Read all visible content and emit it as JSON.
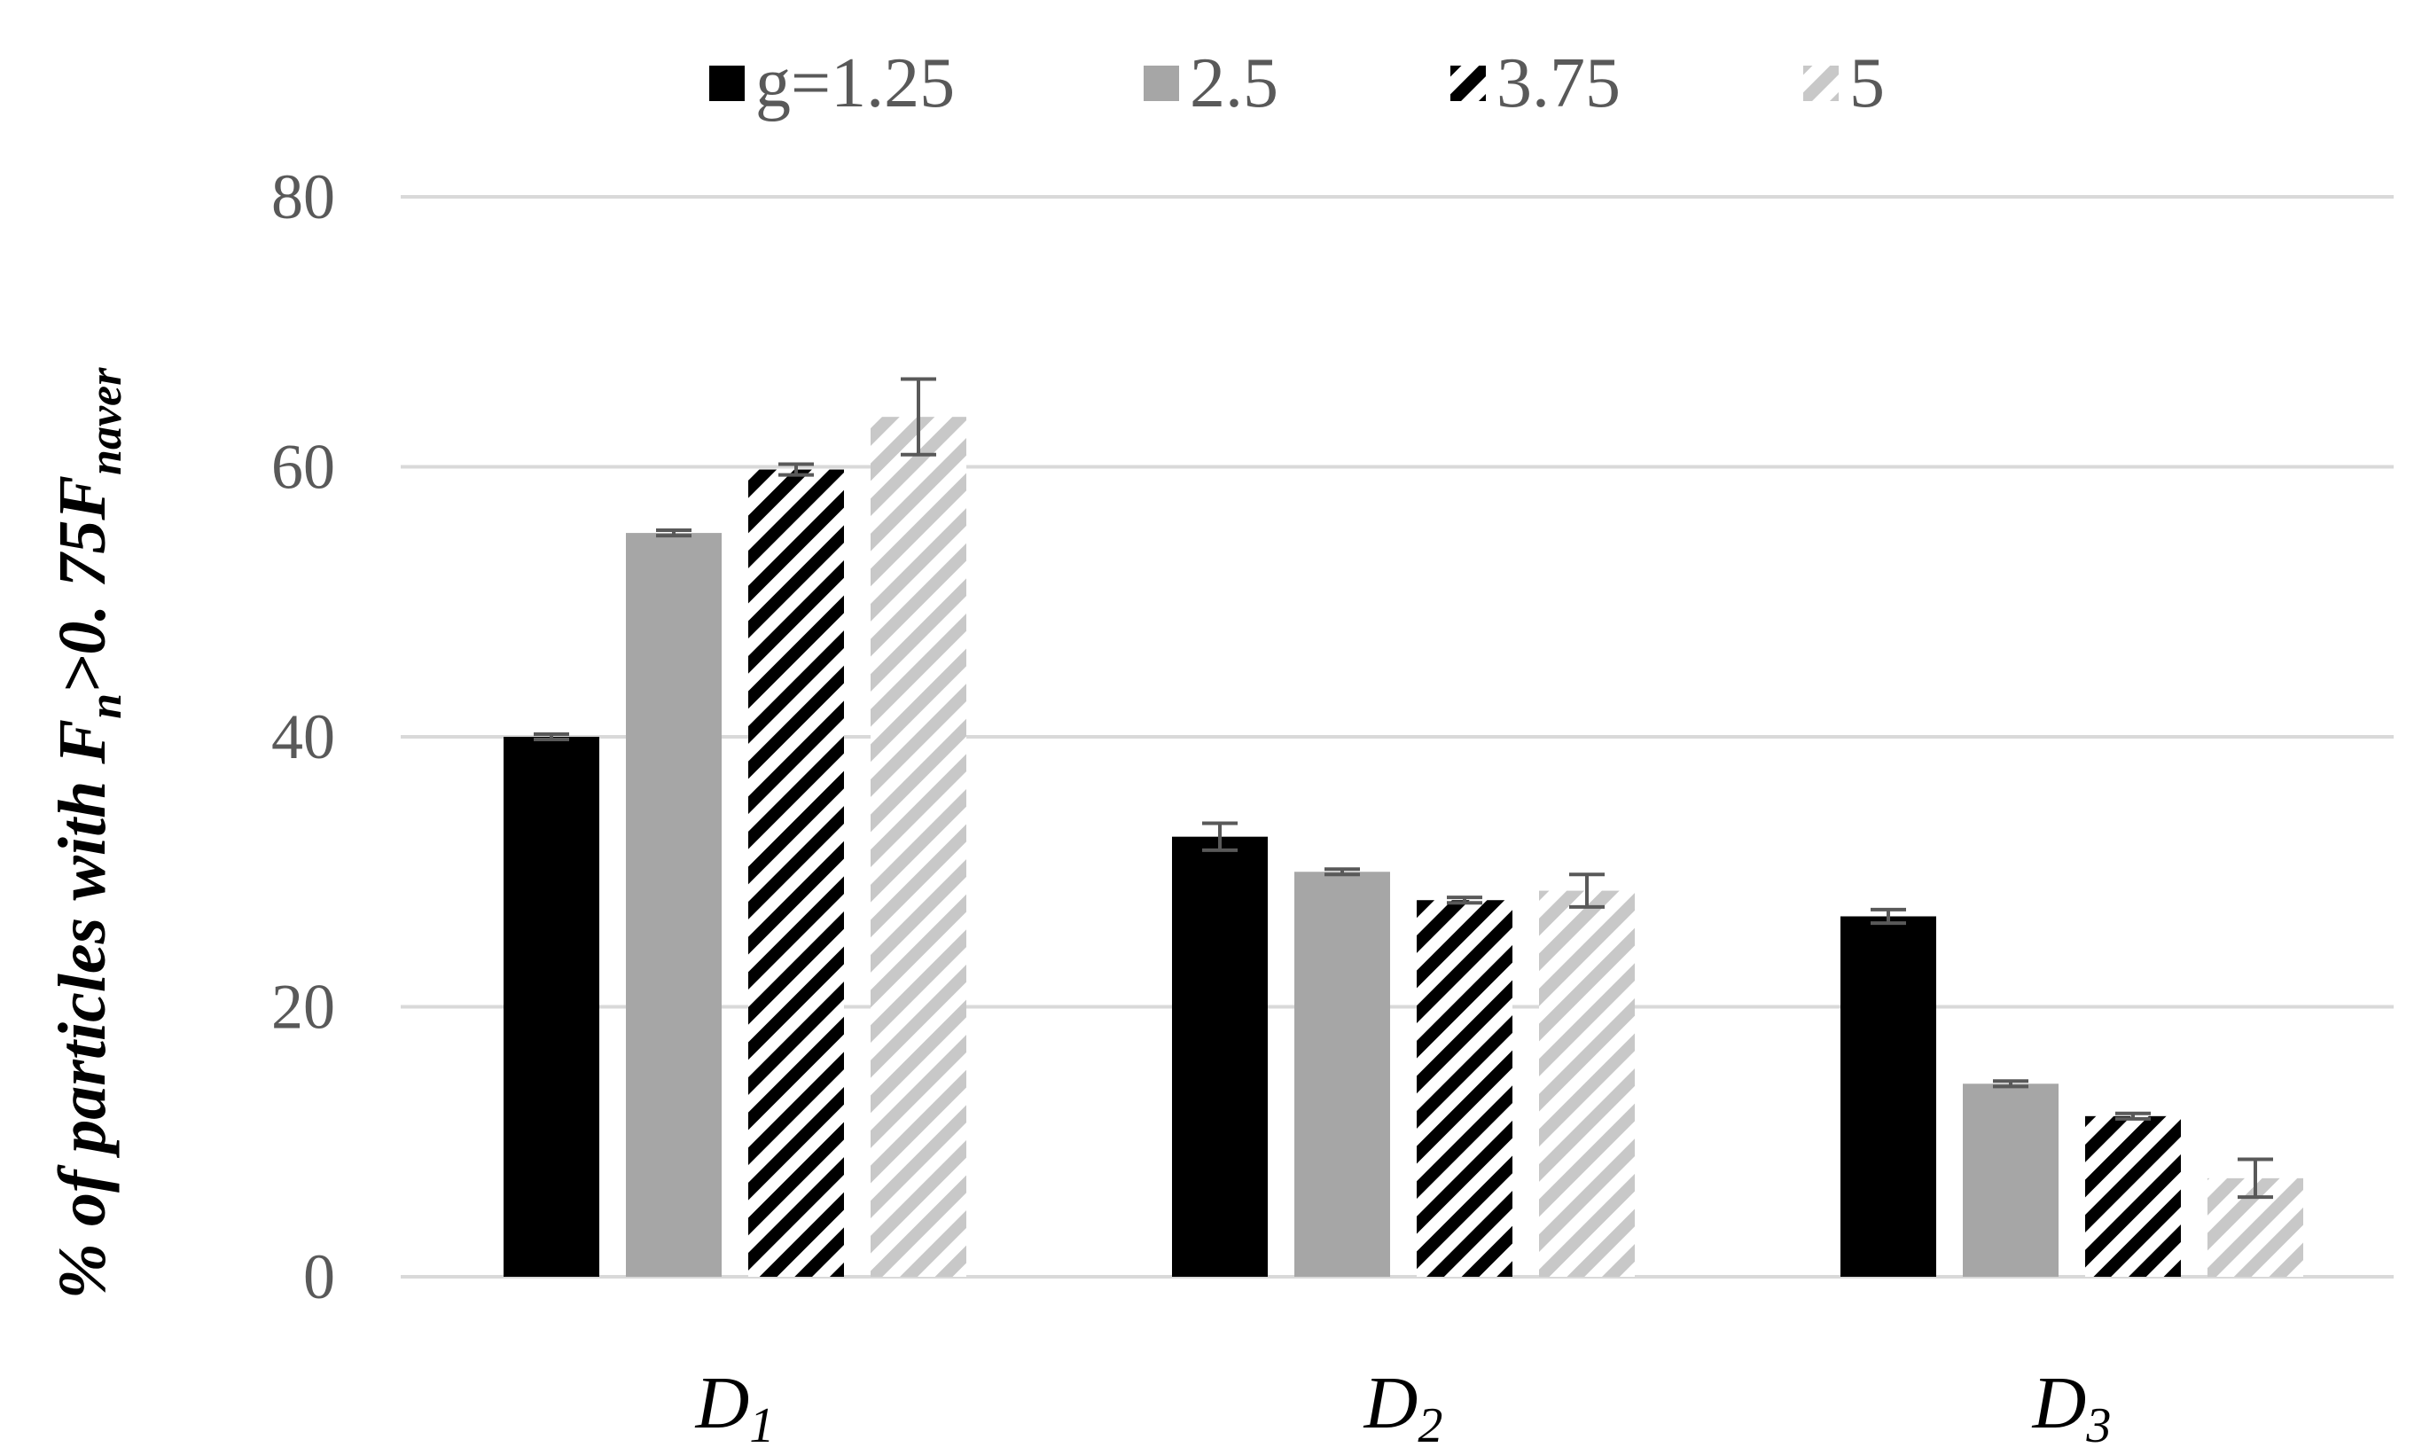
{
  "chart_data": {
    "type": "bar",
    "title": "",
    "xlabel": "",
    "ylabel": {
      "prefix": "% of particles with F",
      "sub1": "n",
      "mid": ">0. 75F",
      "sub2": "naver"
    },
    "ylim": [
      0,
      80
    ],
    "yticks": [
      "0",
      "20",
      "40",
      "60",
      "80"
    ],
    "ytick_values": [
      0,
      20,
      40,
      60,
      80
    ],
    "grid": true,
    "legend_position": "top-center",
    "categories": [
      {
        "main": "D",
        "sub": "1"
      },
      {
        "main": "D",
        "sub": "2"
      },
      {
        "main": "D",
        "sub": "3"
      }
    ],
    "series": [
      {
        "name": "g=1.25",
        "pattern": "solid-black",
        "values": [
          40.0,
          32.6,
          26.7
        ],
        "errors": [
          0.2,
          1.0,
          0.5
        ]
      },
      {
        "name": "2.5",
        "pattern": "solid-gray",
        "values": [
          55.1,
          30.0,
          14.3
        ],
        "errors": [
          0.2,
          0.2,
          0.2
        ]
      },
      {
        "name": "3.75",
        "pattern": "black-hatch",
        "values": [
          59.8,
          27.9,
          11.9
        ],
        "errors": [
          0.4,
          0.2,
          0.2
        ]
      },
      {
        "name": "5",
        "pattern": "gray-hatch",
        "values": [
          63.7,
          28.6,
          7.3
        ],
        "errors": [
          2.8,
          1.2,
          1.4
        ]
      }
    ],
    "colors": {
      "black": "#000000",
      "gray": "#a6a6a6",
      "hatch_gray": "#c8c8c8",
      "grid": "#d9d9d9",
      "axis_text": "#595959",
      "error_bar": "#595959"
    }
  }
}
